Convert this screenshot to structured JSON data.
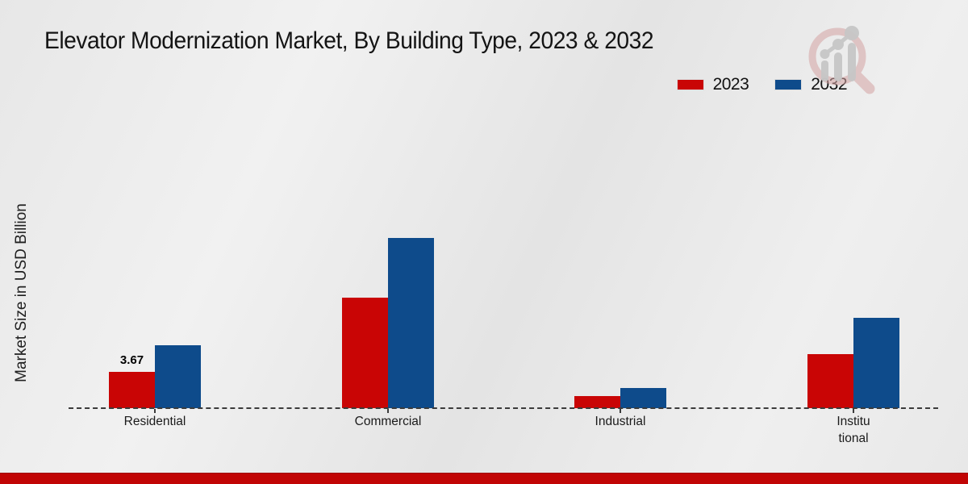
{
  "page": {
    "title": "Elevator Modernization Market, By Building Type, 2023 & 2032",
    "y_axis_label": "Market Size in USD Billion",
    "footer_color": "#c10505",
    "background_color": "#eaeaea"
  },
  "legend": {
    "items": [
      {
        "label": "2023",
        "color": "#c90505"
      },
      {
        "label": "2032",
        "color": "#0e4b8b"
      }
    ]
  },
  "chart_data": {
    "type": "bar",
    "title": "Elevator Modernization Market, By Building Type, 2023 & 2032",
    "xlabel": "",
    "ylabel": "Market Size in USD Billion",
    "categories": [
      "Residential",
      "Commercial",
      "Industrial",
      "Institutional"
    ],
    "tick_labels": [
      "Residential",
      "Commercial",
      "Industrial",
      "Institu\ntional"
    ],
    "series": [
      {
        "name": "2023",
        "color": "#c90505",
        "values": [
          3.67,
          11.2,
          1.2,
          5.5
        ],
        "data_labels": [
          "3.67",
          null,
          null,
          null
        ]
      },
      {
        "name": "2032",
        "color": "#0e4b8b",
        "values": [
          6.35,
          17.2,
          2.0,
          9.15
        ],
        "data_labels": [
          null,
          null,
          null,
          null
        ]
      }
    ],
    "ylim": [
      0,
      20
    ],
    "grid": false,
    "legend_position": "top-right",
    "baseline_style": "dashed",
    "y_axis_ticks_visible": false
  },
  "watermark": {
    "name": "market-research-magnifier-logo"
  }
}
